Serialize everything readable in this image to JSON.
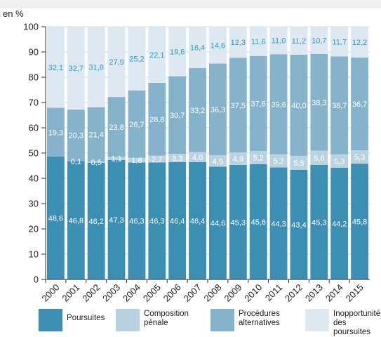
{
  "chart_data": {
    "type": "bar",
    "stacked": true,
    "ylabel": "en %",
    "ylim": [
      0,
      100
    ],
    "yticks": [
      0,
      10,
      20,
      30,
      40,
      50,
      60,
      70,
      80,
      90,
      100
    ],
    "categories": [
      "2000",
      "2001",
      "2002",
      "2003",
      "2004",
      "2005",
      "2006",
      "2007",
      "2008",
      "2009",
      "2010",
      "2011",
      "2012",
      "2013",
      "2014",
      "2015"
    ],
    "series": [
      {
        "name": "Poursuites",
        "color": "#3a8fb3",
        "label_color": "#ffffff",
        "values": [
          48.6,
          46.8,
          46.2,
          47.3,
          46.3,
          46.3,
          46.4,
          46.4,
          44.6,
          45.3,
          45.6,
          44.3,
          43.4,
          45.3,
          44.2,
          45.8
        ],
        "labels": [
          "48,6",
          "46,8",
          "46,2",
          "47,3",
          "46,3",
          "46,3",
          "46,4",
          "46,4",
          "44,6",
          "45,3",
          "45,6",
          "44,3",
          "43,4",
          "45,3",
          "44,2",
          "45,8"
        ]
      },
      {
        "name": "Composition\npénale",
        "color": "#b9d3e1",
        "label_color": "#ffffff",
        "values": [
          0,
          0.1,
          0.5,
          1.1,
          1.8,
          2.7,
          3.3,
          4.0,
          4.5,
          4.9,
          5.2,
          5.2,
          5.5,
          5.6,
          5.3,
          5.3
        ],
        "labels": [
          "",
          "0,1",
          "0,5",
          "1,1",
          "1,8",
          "2,7",
          "3,3",
          "4,0",
          "4,5",
          "4,9",
          "5,2",
          "5,2",
          "5,5",
          "5,6",
          "5,3",
          "5,3"
        ]
      },
      {
        "name": "Procédures\nalternatives",
        "color": "#85b3cc",
        "label_color": "#ffffff",
        "values": [
          19.3,
          20.3,
          21.4,
          23.8,
          26.7,
          28.8,
          30.7,
          33.2,
          36.3,
          37.5,
          37.6,
          39.6,
          40.0,
          38.3,
          38.7,
          36.7
        ],
        "labels": [
          "19,3",
          "20,3",
          "21,4",
          "23,8",
          "26,7",
          "28,8",
          "30,7",
          "33,2",
          "36,3",
          "37,5",
          "37,6",
          "39,6",
          "40,0",
          "38,3",
          "38,7",
          "36,7"
        ]
      },
      {
        "name": "Inopportunité\ndes poursuites",
        "color": "#dde8f0",
        "label_color": "#2a9fc8",
        "values": [
          32.1,
          32.7,
          31.8,
          27.9,
          25.2,
          22.1,
          19.6,
          16.4,
          14.6,
          12.3,
          11.6,
          11.0,
          11.2,
          10.7,
          11.7,
          12.2
        ],
        "labels": [
          "32,1",
          "32,7",
          "31,8",
          "27,9",
          "25,2",
          "22,1",
          "19,6",
          "16,4",
          "14,6",
          "12,3",
          "11,6",
          "11,0",
          "11,2",
          "10,7",
          "11,7",
          "12,2"
        ]
      }
    ],
    "grid": true,
    "legend": "bottom"
  }
}
